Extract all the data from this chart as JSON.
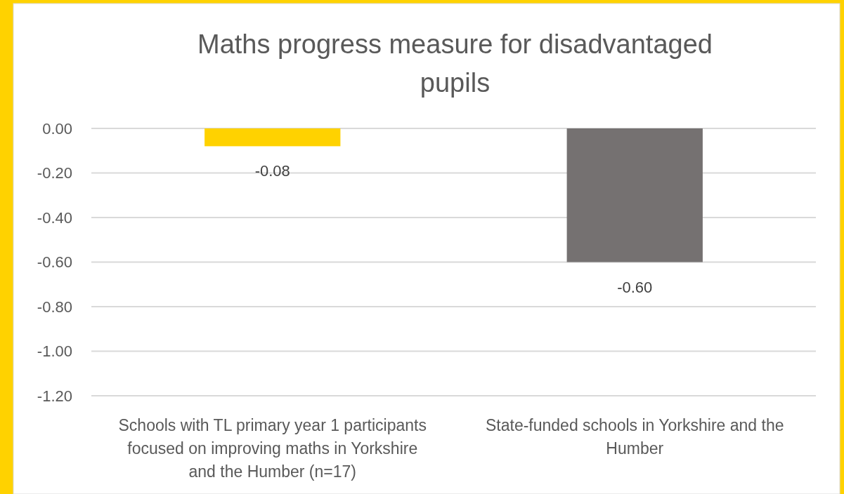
{
  "chart_data": {
    "type": "bar",
    "title": "Maths progress measure for disadvantaged pupils",
    "categories": [
      "Schools with TL primary year 1 participants focused on improving maths in Yorkshire and the Humber (n=17)",
      "State-funded schools in Yorkshire and the Humber"
    ],
    "values": [
      -0.08,
      -0.6
    ],
    "colors": [
      "#ffd200",
      "#757171"
    ],
    "value_labels": [
      "-0.08",
      "-0.60"
    ],
    "ylim": [
      -1.2,
      0
    ],
    "yticks": [
      {
        "value": 0,
        "label": "0.00"
      },
      {
        "value": -0.2,
        "label": "-0.20"
      },
      {
        "value": -0.4,
        "label": "-0.40"
      },
      {
        "value": -0.6,
        "label": "-0.60"
      },
      {
        "value": -0.8,
        "label": "-0.80"
      },
      {
        "value": -1.0,
        "label": "-1.00"
      },
      {
        "value": -1.2,
        "label": "-1.20"
      }
    ],
    "grid": "y"
  }
}
